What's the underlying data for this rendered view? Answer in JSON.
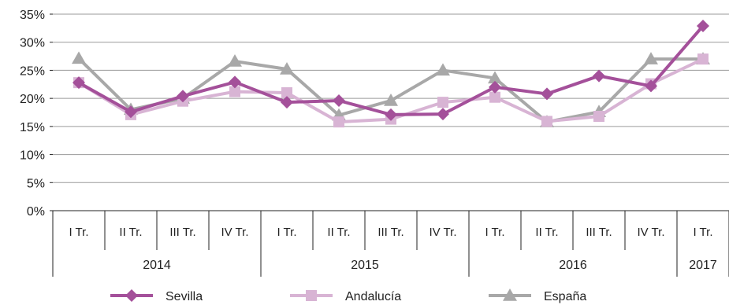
{
  "chart_data": {
    "type": "line",
    "title": "",
    "xlabel": "",
    "ylabel": "",
    "ylim": [
      0,
      35
    ],
    "y_ticks": [
      "0%",
      "5%",
      "10%",
      "15%",
      "20%",
      "25%",
      "30%",
      "35%"
    ],
    "y_tick_values": [
      0,
      5,
      10,
      15,
      20,
      25,
      30,
      35
    ],
    "grid": "horizontal",
    "legend_position": "bottom",
    "categories": [
      "I Tr.",
      "II Tr.",
      "III Tr.",
      "IV Tr.",
      "I Tr.",
      "II Tr.",
      "III Tr.",
      "IV Tr.",
      "I Tr.",
      "II Tr.",
      "III Tr.",
      "IV Tr.",
      "I Tr."
    ],
    "year_groups": [
      {
        "label": "2014",
        "count": 4
      },
      {
        "label": "2015",
        "count": 4
      },
      {
        "label": "2016",
        "count": 4
      },
      {
        "label": "2017",
        "count": 1
      }
    ],
    "series": [
      {
        "name": "Sevilla",
        "color": "#a4509a",
        "marker": "diamond",
        "values": [
          22.8,
          17.6,
          20.4,
          22.9,
          19.3,
          19.6,
          17.1,
          17.2,
          22.0,
          20.8,
          24.0,
          22.2,
          32.9
        ]
      },
      {
        "name": "Andalucía",
        "color": "#d8b4d4",
        "marker": "square",
        "values": [
          22.8,
          17.1,
          19.5,
          21.2,
          21.0,
          15.8,
          16.3,
          19.3,
          20.2,
          15.9,
          16.8,
          22.6,
          27.0
        ]
      },
      {
        "name": "España",
        "color": "#a8a8a8",
        "marker": "triangle",
        "values": [
          27.1,
          18.0,
          20.0,
          26.6,
          25.2,
          17.0,
          19.6,
          25.0,
          23.6,
          15.8,
          17.6,
          27.0,
          27.0
        ]
      }
    ]
  }
}
